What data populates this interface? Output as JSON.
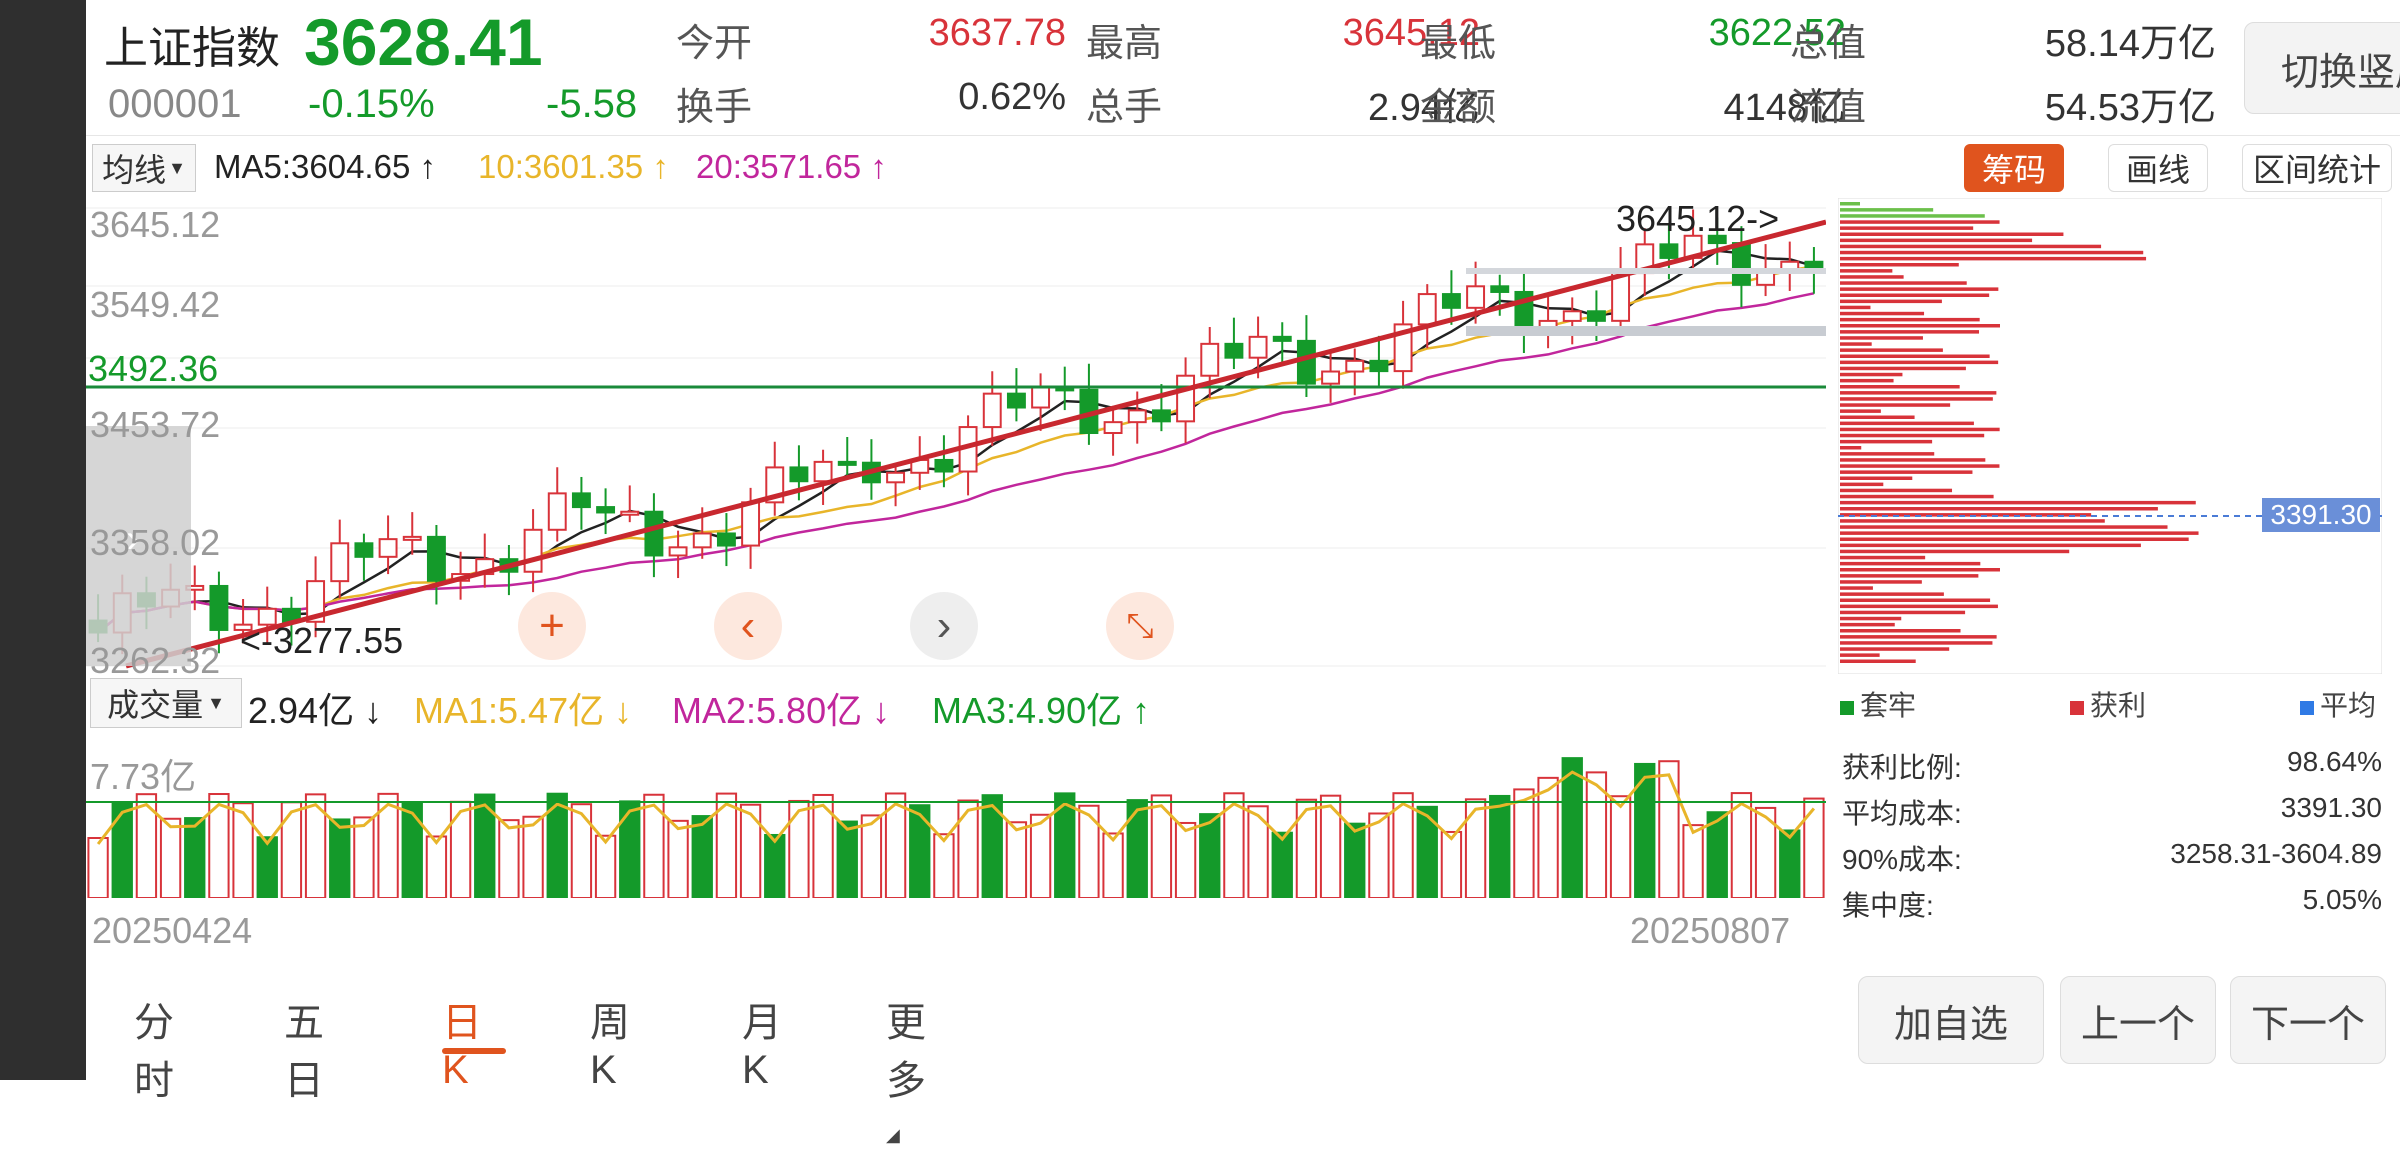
{
  "header": {
    "name": "上证指数",
    "price": "3628.41",
    "code": "000001",
    "pct": "-0.15%",
    "chg": "-5.58",
    "stats": [
      {
        "label": "今开",
        "value": "3637.78",
        "color": "red"
      },
      {
        "label": "最高",
        "value": "3645.12",
        "color": "red"
      },
      {
        "label": "最低",
        "value": "3622.52",
        "color": "green"
      },
      {
        "label": "总值",
        "value": "58.14万亿",
        "color": "dark"
      },
      {
        "label": "换手",
        "value": "0.62%",
        "color": "dark"
      },
      {
        "label": "总手",
        "value": "2.94亿",
        "color": "dark"
      },
      {
        "label": "金额",
        "value": "4148亿",
        "color": "dark"
      },
      {
        "label": "流值",
        "value": "54.53万亿",
        "color": "dark"
      }
    ],
    "switch_label": "切换竖屏"
  },
  "ma_row": {
    "type_label": "均线",
    "ma5": "MA5:3604.65",
    "ma10": "10:3601.35",
    "ma20": "20:3571.65"
  },
  "tools": {
    "chip": "筹码",
    "draw": "画线",
    "range": "区间统计"
  },
  "price_axis": {
    "l1": "3645.12",
    "l2": "3549.42",
    "l3": "3492.36",
    "l4": "3453.72",
    "l5": "3358.02",
    "l6": "3262.32",
    "hi_note": "3645.12",
    "lo_note": "3277.55",
    "chip_marker": "3391.30"
  },
  "volume_row": {
    "type_label": "成交量",
    "vol": "2.94亿",
    "ma1": "MA1:5.47亿",
    "ma2": "MA2:5.80亿",
    "ma3": "MA3:4.90亿",
    "axis_max": "7.73亿"
  },
  "dates": {
    "start": "20250424",
    "end": "20250807"
  },
  "chip_legend": {
    "a": "套牢",
    "b": "获利",
    "c": "平均"
  },
  "chip_info": [
    {
      "label": "获利比例:",
      "value": "98.64%"
    },
    {
      "label": "平均成本:",
      "value": "3391.30"
    },
    {
      "label": "90%成本:",
      "value": "3258.31-3604.89"
    },
    {
      "label": "集中度:",
      "value": "5.05%"
    }
  ],
  "tabs": [
    "分时",
    "五日",
    "日K",
    "周K",
    "月K",
    "更多"
  ],
  "active_tab": "日K",
  "buttons": {
    "add": "加自选",
    "prev": "上一个",
    "next": "下一个"
  },
  "colors": {
    "up": "#d8333a",
    "down": "#149a2a",
    "ma5": "#222222",
    "ma10": "#e8b52a",
    "ma20": "#c1269c",
    "accent": "#e0541e"
  },
  "chart_data": {
    "type": "candlestick",
    "ylim": [
      3262.32,
      3645.12
    ],
    "high": 3645.12,
    "low": 3277.55,
    "close_last": 3628.41,
    "trendline": "ascending red trendline from lower-left to upper-right",
    "volume_ylim": [
      0,
      7.73
    ],
    "chip_avg_cost": 3391.3
  }
}
